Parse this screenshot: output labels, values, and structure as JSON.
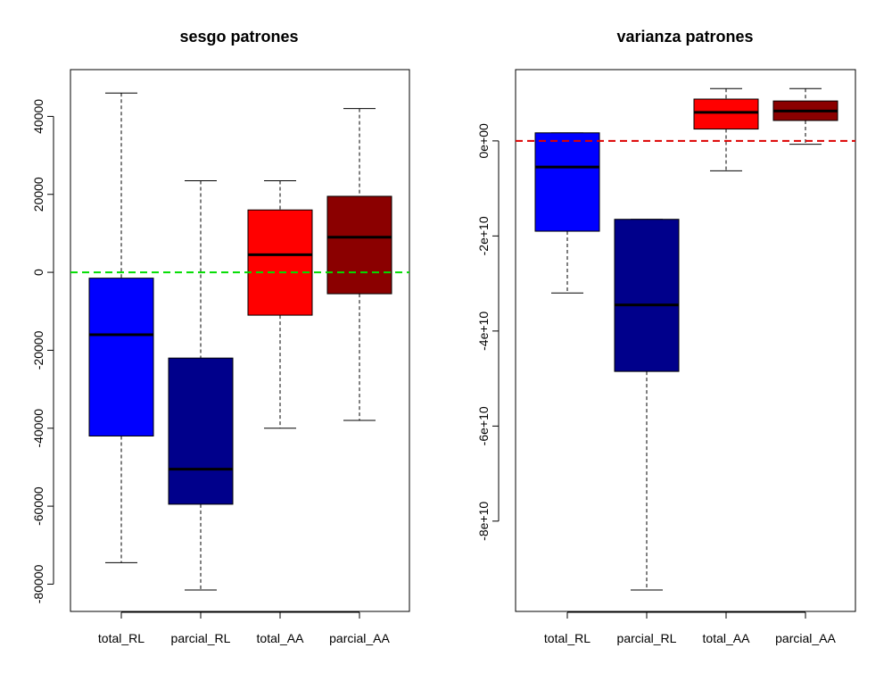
{
  "chart_data": [
    {
      "type": "box",
      "title": "sesgo patrones",
      "xlabel": "",
      "ylabel": "",
      "ylim": [
        -87000,
        52000
      ],
      "yticks": [
        -80000,
        -60000,
        -40000,
        -20000,
        0,
        20000,
        40000
      ],
      "ytick_labels": [
        "-80000",
        "-60000",
        "-40000",
        "-20000",
        "0",
        "20000",
        "40000"
      ],
      "categories": [
        "total_RL",
        "parcial_RL",
        "total_AA",
        "parcial_AA"
      ],
      "boxes": [
        {
          "name": "total_RL",
          "color": "#0000FF",
          "min": -74500,
          "q1": -42000,
          "median": -16000,
          "q3": -1500,
          "max": 46000
        },
        {
          "name": "parcial_RL",
          "color": "#00008B",
          "min": -81500,
          "q1": -59500,
          "median": -50500,
          "q3": -22000,
          "max": 23500
        },
        {
          "name": "total_AA",
          "color": "#FF0000",
          "min": -40000,
          "q1": -11000,
          "median": 4500,
          "q3": 16000,
          "max": 23500
        },
        {
          "name": "parcial_AA",
          "color": "#8B0000",
          "min": -38000,
          "q1": -5500,
          "median": 9000,
          "q3": 19500,
          "max": 42000
        }
      ],
      "reference_line": {
        "value": 0,
        "color": "#00DD00"
      }
    },
    {
      "type": "box",
      "title": "varianza patrones",
      "xlabel": "",
      "ylabel": "",
      "ylim": [
        -99000000000,
        15000000000
      ],
      "yticks": [
        -80000000000,
        -60000000000,
        -40000000000,
        -20000000000,
        0
      ],
      "ytick_labels": [
        "-8e+10",
        "-6e+10",
        "-4e+10",
        "-2e+10",
        "0e+00"
      ],
      "categories": [
        "total_RL",
        "parcial_RL",
        "total_AA",
        "parcial_AA"
      ],
      "boxes": [
        {
          "name": "total_RL",
          "color": "#0000FF",
          "min": -32000000000,
          "q1": -19000000000,
          "median": -5500000000,
          "q3": 1700000000,
          "max": 1700000000
        },
        {
          "name": "parcial_RL",
          "color": "#00008B",
          "min": -94500000000,
          "q1": -48500000000,
          "median": -34500000000,
          "q3": -16500000000,
          "max": -16500000000
        },
        {
          "name": "total_AA",
          "color": "#FF0000",
          "min": -6300000000,
          "q1": 2500000000,
          "median": 6000000000,
          "q3": 8800000000,
          "max": 11000000000
        },
        {
          "name": "parcial_AA",
          "color": "#8B0000",
          "min": -700000000,
          "q1": 4300000000,
          "median": 6300000000,
          "q3": 8400000000,
          "max": 11000000000
        }
      ],
      "reference_line": {
        "value": 0,
        "color": "#DD0000"
      }
    }
  ]
}
